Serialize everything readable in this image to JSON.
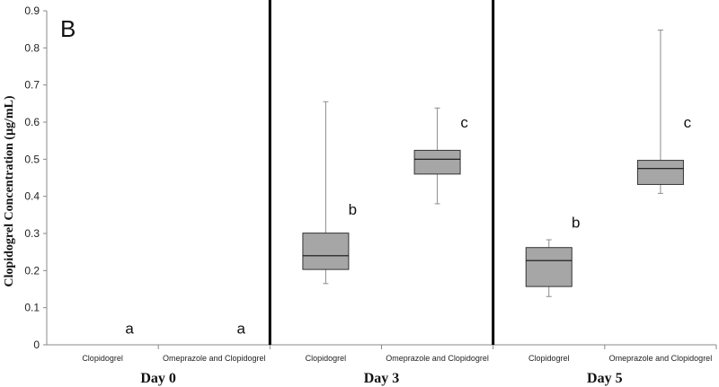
{
  "chart_data": {
    "type": "box",
    "panel_label": "B",
    "ylabel": "Clopidogrel Concentration (µg/mL)",
    "ylim": [
      0,
      0.9
    ],
    "yticks": [
      "0",
      "0.1",
      "0.2",
      "0.3",
      "0.4",
      "0.5",
      "0.6",
      "0.7",
      "0.8",
      "0.9"
    ],
    "groups": [
      {
        "label": "Day 0",
        "categories": [
          {
            "label": "Clopidogrel",
            "box": null,
            "annotation": "a",
            "annotation_y": 0.045
          },
          {
            "label": "Omeprazole and Clopidogrel",
            "box": null,
            "annotation": "a",
            "annotation_y": 0.045
          }
        ]
      },
      {
        "label": "Day 3",
        "categories": [
          {
            "label": "Clopidogrel",
            "box": {
              "min": 0.165,
              "q1": 0.203,
              "median": 0.24,
              "q3": 0.301,
              "max": 0.655
            },
            "annotation": "b",
            "annotation_y": 0.365
          },
          {
            "label": "Omeprazole and Clopidogrel",
            "box": {
              "min": 0.38,
              "q1": 0.46,
              "median": 0.5,
              "q3": 0.524,
              "max": 0.638
            },
            "annotation": "c",
            "annotation_y": 0.6
          }
        ]
      },
      {
        "label": "Day 5",
        "categories": [
          {
            "label": "Clopidogrel",
            "box": {
              "min": 0.13,
              "q1": 0.157,
              "median": 0.227,
              "q3": 0.262,
              "max": 0.283
            },
            "annotation": "b",
            "annotation_y": 0.33
          },
          {
            "label": "Omeprazole and Clopidogrel",
            "box": {
              "min": 0.408,
              "q1": 0.432,
              "median": 0.475,
              "q3": 0.497,
              "max": 0.848
            },
            "annotation": "c",
            "annotation_y": 0.6
          }
        ]
      }
    ],
    "colors": {
      "box_fill": "#a6a6a6",
      "box_stroke": "#333333",
      "whisker": "#8c8c8c",
      "divider": "#000000",
      "axis": "#888888"
    }
  }
}
